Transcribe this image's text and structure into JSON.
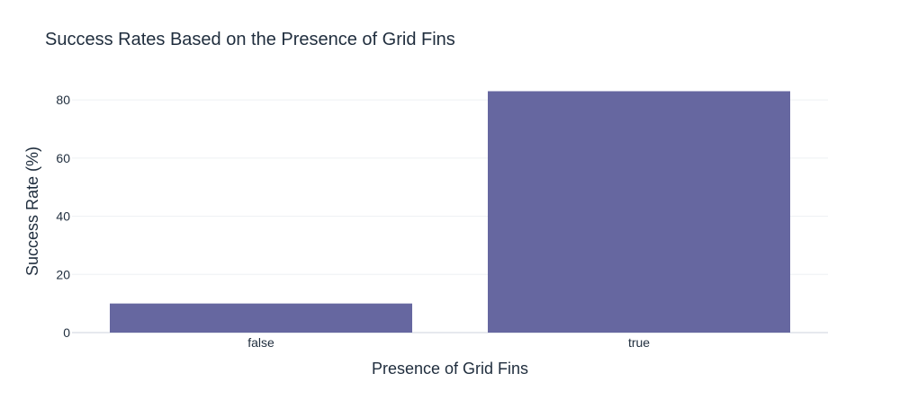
{
  "chart_data": {
    "type": "bar",
    "title": "Success Rates Based on the Presence of Grid Fins",
    "xlabel": "Presence of Grid Fins",
    "ylabel": "Success Rate (%)",
    "categories": [
      "false",
      "true"
    ],
    "values": [
      10,
      83
    ],
    "ylim": [
      0,
      85
    ],
    "yticks": [
      0,
      20,
      40,
      60,
      80
    ],
    "grid": true,
    "legend": "none",
    "bar_color": "#6667a0"
  }
}
